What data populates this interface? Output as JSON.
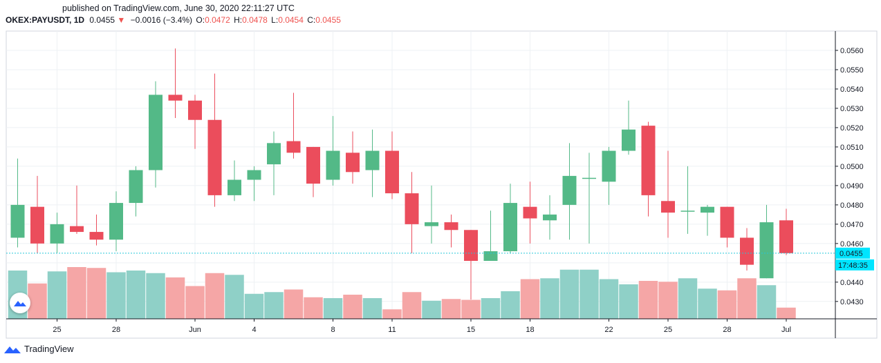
{
  "header": {
    "published": "published on TradingView.com, June 30, 2020 22:11:27 UTC"
  },
  "legend": {
    "symbol": "OKEX:PAYUSDT, 1D",
    "last": "0.0455",
    "change_arrow": "▼",
    "change": "−0.0016 (−3.4%)",
    "open_label": "O:",
    "open": "0.0472",
    "high_label": "H:",
    "high": "0.0478",
    "low_label": "L:",
    "low": "0.0454",
    "close_label": "C:",
    "close": "0.0455"
  },
  "footer": {
    "brand": "TradingView"
  },
  "colors": {
    "up": "#53b987",
    "down": "#eb4d5c",
    "vol_up": "#8fd0c7",
    "vol_down": "#f5a6a6",
    "grid": "#eef1f4",
    "axis": "#131722",
    "price_line": "#26c6da",
    "price_label_bg": "#00e5ff"
  },
  "chart_data": {
    "type": "candlestick",
    "price_axis_ticks": [
      "0.0430",
      "0.0440",
      "0.0450",
      "0.0460",
      "0.0470",
      "0.0480",
      "0.0490",
      "0.0500",
      "0.0510",
      "0.0520",
      "0.0530",
      "0.0540",
      "0.0550",
      "0.0560"
    ],
    "ylim": [
      0.0421,
      0.057
    ],
    "x_ticks": [
      {
        "index": 2,
        "label": "25"
      },
      {
        "index": 5,
        "label": "28"
      },
      {
        "index": 9,
        "label": "Jun"
      },
      {
        "index": 12,
        "label": "4"
      },
      {
        "index": 16,
        "label": "8"
      },
      {
        "index": 19,
        "label": "11"
      },
      {
        "index": 23,
        "label": "15"
      },
      {
        "index": 26,
        "label": "18"
      },
      {
        "index": 30,
        "label": "22"
      },
      {
        "index": 33,
        "label": "25"
      },
      {
        "index": 36,
        "label": "28"
      },
      {
        "index": 39,
        "label": "Jul"
      }
    ],
    "current_price_label": "0.0455",
    "countdown_label": "17:48:35",
    "candles": [
      {
        "o": 0.0463,
        "h": 0.0504,
        "l": 0.0458,
        "c": 0.048,
        "v": 0.56
      },
      {
        "o": 0.0479,
        "h": 0.0495,
        "l": 0.0455,
        "c": 0.046,
        "v": 0.41
      },
      {
        "o": 0.046,
        "h": 0.0476,
        "l": 0.0455,
        "c": 0.047,
        "v": 0.55
      },
      {
        "o": 0.0469,
        "h": 0.049,
        "l": 0.0465,
        "c": 0.0466,
        "v": 0.6
      },
      {
        "o": 0.0466,
        "h": 0.0475,
        "l": 0.0459,
        "c": 0.0462,
        "v": 0.59
      },
      {
        "o": 0.0462,
        "h": 0.0487,
        "l": 0.0456,
        "c": 0.0481,
        "v": 0.54
      },
      {
        "o": 0.0481,
        "h": 0.05,
        "l": 0.0474,
        "c": 0.0498,
        "v": 0.56
      },
      {
        "o": 0.0498,
        "h": 0.0544,
        "l": 0.0489,
        "c": 0.0537,
        "v": 0.53
      },
      {
        "o": 0.0537,
        "h": 0.0561,
        "l": 0.0525,
        "c": 0.0534,
        "v": 0.48
      },
      {
        "o": 0.0534,
        "h": 0.0537,
        "l": 0.0509,
        "c": 0.0524,
        "v": 0.38
      },
      {
        "o": 0.0524,
        "h": 0.0548,
        "l": 0.0479,
        "c": 0.0485,
        "v": 0.53
      },
      {
        "o": 0.0485,
        "h": 0.0503,
        "l": 0.0482,
        "c": 0.0493,
        "v": 0.51
      },
      {
        "o": 0.0493,
        "h": 0.05,
        "l": 0.0482,
        "c": 0.0498,
        "v": 0.29
      },
      {
        "o": 0.0501,
        "h": 0.0518,
        "l": 0.0485,
        "c": 0.0512,
        "v": 0.31
      },
      {
        "o": 0.0513,
        "h": 0.0538,
        "l": 0.0504,
        "c": 0.0507,
        "v": 0.34
      },
      {
        "o": 0.051,
        "h": 0.051,
        "l": 0.0484,
        "c": 0.0491,
        "v": 0.25
      },
      {
        "o": 0.0493,
        "h": 0.0526,
        "l": 0.049,
        "c": 0.0508,
        "v": 0.24
      },
      {
        "o": 0.0507,
        "h": 0.0518,
        "l": 0.0491,
        "c": 0.0497,
        "v": 0.28
      },
      {
        "o": 0.0498,
        "h": 0.0519,
        "l": 0.0484,
        "c": 0.0508,
        "v": 0.24
      },
      {
        "o": 0.0508,
        "h": 0.0518,
        "l": 0.0483,
        "c": 0.0486,
        "v": 0.11
      },
      {
        "o": 0.0486,
        "h": 0.0497,
        "l": 0.0455,
        "c": 0.047,
        "v": 0.31
      },
      {
        "o": 0.0469,
        "h": 0.049,
        "l": 0.046,
        "c": 0.0471,
        "v": 0.21
      },
      {
        "o": 0.0471,
        "h": 0.0475,
        "l": 0.0458,
        "c": 0.0467,
        "v": 0.23
      },
      {
        "o": 0.0467,
        "h": 0.0467,
        "l": 0.0431,
        "c": 0.0451,
        "v": 0.22
      },
      {
        "o": 0.0451,
        "h": 0.0477,
        "l": 0.0451,
        "c": 0.0456,
        "v": 0.24
      },
      {
        "o": 0.0456,
        "h": 0.0491,
        "l": 0.0455,
        "c": 0.0481,
        "v": 0.32
      },
      {
        "o": 0.0479,
        "h": 0.0492,
        "l": 0.046,
        "c": 0.0473,
        "v": 0.46
      },
      {
        "o": 0.0472,
        "h": 0.0485,
        "l": 0.0462,
        "c": 0.0475,
        "v": 0.47
      },
      {
        "o": 0.048,
        "h": 0.0512,
        "l": 0.0462,
        "c": 0.0495,
        "v": 0.57
      },
      {
        "o": 0.0494,
        "h": 0.0507,
        "l": 0.046,
        "c": 0.0494,
        "v": 0.57
      },
      {
        "o": 0.0492,
        "h": 0.051,
        "l": 0.048,
        "c": 0.0508,
        "v": 0.46
      },
      {
        "o": 0.0508,
        "h": 0.0534,
        "l": 0.0506,
        "c": 0.0519,
        "v": 0.4
      },
      {
        "o": 0.0521,
        "h": 0.0523,
        "l": 0.0474,
        "c": 0.0485,
        "v": 0.44
      },
      {
        "o": 0.0482,
        "h": 0.0508,
        "l": 0.0463,
        "c": 0.0476,
        "v": 0.43
      },
      {
        "o": 0.0477,
        "h": 0.05,
        "l": 0.0465,
        "c": 0.0477,
        "v": 0.47
      },
      {
        "o": 0.0476,
        "h": 0.048,
        "l": 0.0464,
        "c": 0.0479,
        "v": 0.35
      },
      {
        "o": 0.0479,
        "h": 0.0479,
        "l": 0.0458,
        "c": 0.0463,
        "v": 0.33
      },
      {
        "o": 0.0463,
        "h": 0.0468,
        "l": 0.0446,
        "c": 0.0449,
        "v": 0.47
      },
      {
        "o": 0.0442,
        "h": 0.048,
        "l": 0.0442,
        "c": 0.0471,
        "v": 0.39
      },
      {
        "o": 0.0472,
        "h": 0.0478,
        "l": 0.0454,
        "c": 0.0455,
        "v": 0.13
      }
    ]
  }
}
